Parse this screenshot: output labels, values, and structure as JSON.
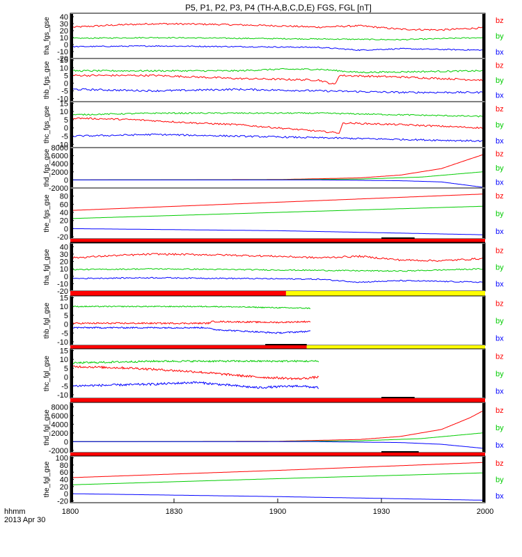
{
  "title": "P5, P1, P2, P3, P4 (TH-A,B,C,D,E) FGS, FGL [nT]",
  "time_label": "hhmm",
  "date_label": "2013 Apr 30",
  "colors": {
    "bx": "#0000ff",
    "by": "#00cc00",
    "bz": "#ff0000",
    "bar_red": "#ff0000",
    "bar_yellow": "#ffff00",
    "bar_black": "#000000"
  },
  "chart_data": {
    "type": "line",
    "x": {
      "range": [
        "1800",
        "2000"
      ],
      "ticks": [
        "1800",
        "1830",
        "1900",
        "1930",
        "2000"
      ]
    },
    "panels": [
      {
        "ylabel": "tha_fgs_gse",
        "ylim": [
          -20,
          45
        ],
        "ticks": [
          "40",
          "30",
          "20",
          "10",
          "0",
          "-10",
          "-20"
        ],
        "series": [
          {
            "name": "bz",
            "keyframes": [
              [
                0,
                25
              ],
              [
                0.1,
                28
              ],
              [
                0.2,
                30
              ],
              [
                0.35,
                29
              ],
              [
                0.5,
                27
              ],
              [
                0.6,
                25
              ],
              [
                0.7,
                27
              ],
              [
                0.8,
                22
              ],
              [
                0.9,
                21
              ],
              [
                1,
                24
              ]
            ],
            "noise": 1.2
          },
          {
            "name": "by",
            "keyframes": [
              [
                0,
                9
              ],
              [
                0.2,
                10
              ],
              [
                0.4,
                9
              ],
              [
                0.6,
                8
              ],
              [
                0.8,
                7
              ],
              [
                1,
                10
              ]
            ],
            "noise": 0.8
          },
          {
            "name": "bx",
            "keyframes": [
              [
                0,
                -3
              ],
              [
                0.2,
                -2
              ],
              [
                0.4,
                -3
              ],
              [
                0.6,
                -4
              ],
              [
                0.7,
                -8
              ],
              [
                0.8,
                -6
              ],
              [
                1,
                -8
              ]
            ],
            "noise": 0.8
          }
        ]
      },
      {
        "ylabel": "thb_fgs_gse",
        "ylim": [
          -12,
          16
        ],
        "ticks": [
          "15",
          "10",
          "5",
          "0",
          "-5",
          "-10"
        ],
        "series": [
          {
            "name": "bz",
            "keyframes": [
              [
                0,
                5
              ],
              [
                0.2,
                5
              ],
              [
                0.4,
                3
              ],
              [
                0.6,
                2
              ],
              [
                0.64,
                -1
              ],
              [
                0.65,
                5
              ],
              [
                0.8,
                4
              ],
              [
                1,
                2
              ]
            ],
            "noise": 0.6
          },
          {
            "name": "by",
            "keyframes": [
              [
                0,
                8
              ],
              [
                0.2,
                8
              ],
              [
                0.4,
                8
              ],
              [
                0.5,
                9
              ],
              [
                0.6,
                9
              ],
              [
                0.7,
                7
              ],
              [
                1,
                8
              ]
            ],
            "noise": 0.5
          },
          {
            "name": "bx",
            "keyframes": [
              [
                0,
                -4
              ],
              [
                0.2,
                -5
              ],
              [
                0.4,
                -4
              ],
              [
                0.6,
                -5
              ],
              [
                0.8,
                -6
              ],
              [
                1,
                -6
              ]
            ],
            "noise": 0.6
          }
        ]
      },
      {
        "ylabel": "thc_fgs_gse",
        "ylim": [
          -12,
          16
        ],
        "ticks": [
          "15",
          "10",
          "5",
          "0",
          "-5",
          "-10"
        ],
        "series": [
          {
            "name": "bz",
            "keyframes": [
              [
                0,
                6
              ],
              [
                0.15,
                5
              ],
              [
                0.3,
                3
              ],
              [
                0.4,
                2
              ],
              [
                0.55,
                -1
              ],
              [
                0.65,
                -3
              ],
              [
                0.66,
                3
              ],
              [
                0.8,
                2
              ],
              [
                1,
                0
              ]
            ],
            "noise": 0.5
          },
          {
            "name": "by",
            "keyframes": [
              [
                0,
                8
              ],
              [
                0.2,
                9
              ],
              [
                0.4,
                9
              ],
              [
                0.6,
                9
              ],
              [
                0.8,
                8
              ],
              [
                1,
                7
              ]
            ],
            "noise": 0.4
          },
          {
            "name": "bx",
            "keyframes": [
              [
                0,
                -5
              ],
              [
                0.2,
                -4
              ],
              [
                0.4,
                -5
              ],
              [
                0.6,
                -6
              ],
              [
                0.8,
                -7
              ],
              [
                1,
                -8
              ]
            ],
            "noise": 0.5
          }
        ]
      },
      {
        "ylabel": "thd_fgs_gse",
        "ylim": [
          -2000,
          8000
        ],
        "ticks": [
          "8000",
          "6000",
          "4000",
          "2000",
          "0",
          "-2000"
        ],
        "series": [
          {
            "name": "bz",
            "keyframes": [
              [
                0,
                0
              ],
              [
                0.5,
                100
              ],
              [
                0.7,
                500
              ],
              [
                0.8,
                1200
              ],
              [
                0.9,
                2800
              ],
              [
                0.97,
                5200
              ],
              [
                1,
                6200
              ]
            ],
            "noise": 0
          },
          {
            "name": "by",
            "keyframes": [
              [
                0,
                0
              ],
              [
                0.5,
                50
              ],
              [
                0.7,
                200
              ],
              [
                0.85,
                700
              ],
              [
                1,
                2000
              ]
            ],
            "noise": 0
          },
          {
            "name": "bx",
            "keyframes": [
              [
                0,
                0
              ],
              [
                0.6,
                0
              ],
              [
                0.8,
                -200
              ],
              [
                0.9,
                -500
              ],
              [
                1,
                -1800
              ]
            ],
            "noise": 0
          }
        ]
      },
      {
        "ylabel": "the_fgs_gse",
        "ylim": [
          -25,
          100
        ],
        "ticks": [
          "80",
          "60",
          "40",
          "20",
          "0",
          "-20"
        ],
        "series": [
          {
            "name": "bz",
            "keyframes": [
              [
                0,
                45
              ],
              [
                0.5,
                65
              ],
              [
                1,
                85
              ]
            ],
            "noise": 0
          },
          {
            "name": "by",
            "keyframes": [
              [
                0,
                25
              ],
              [
                0.5,
                40
              ],
              [
                1,
                55
              ]
            ],
            "noise": 0
          },
          {
            "name": "bx",
            "keyframes": [
              [
                0,
                0
              ],
              [
                0.5,
                -5
              ],
              [
                1,
                -15
              ]
            ],
            "noise": 0
          }
        ]
      },
      {
        "ylabel": "tha_fgl_gse",
        "ylim": [
          -20,
          45
        ],
        "ticks": [
          "40",
          "30",
          "20",
          "10",
          "0",
          "-10",
          "-20"
        ],
        "series": [
          {
            "name": "bz",
            "keyframes": [
              [
                0,
                25
              ],
              [
                0.1,
                28
              ],
              [
                0.2,
                30
              ],
              [
                0.35,
                29
              ],
              [
                0.5,
                27
              ],
              [
                0.6,
                25
              ],
              [
                0.7,
                27
              ],
              [
                0.8,
                22
              ],
              [
                0.9,
                21
              ],
              [
                1,
                24
              ]
            ],
            "noise": 1.2
          },
          {
            "name": "by",
            "keyframes": [
              [
                0,
                9
              ],
              [
                0.2,
                10
              ],
              [
                0.4,
                9
              ],
              [
                0.6,
                8
              ],
              [
                0.8,
                7
              ],
              [
                1,
                10
              ]
            ],
            "noise": 0.8
          },
          {
            "name": "bx",
            "keyframes": [
              [
                0,
                -3
              ],
              [
                0.2,
                -2
              ],
              [
                0.4,
                -3
              ],
              [
                0.6,
                -4
              ],
              [
                0.7,
                -8
              ],
              [
                0.8,
                -6
              ],
              [
                1,
                -8
              ]
            ],
            "noise": 0.8
          }
        ]
      },
      {
        "ylabel": "thb_fgl_gse",
        "ylim": [
          -12,
          16
        ],
        "ticks": [
          "15",
          "10",
          "5",
          "0",
          "-5",
          "-10"
        ],
        "series": [
          {
            "name": "bz",
            "keyframes": [
              [
                0,
                0.5
              ],
              [
                0.33,
                0.5
              ],
              [
                0.34,
                1.5
              ],
              [
                0.5,
                1
              ],
              [
                0.58,
                1.5
              ]
            ],
            "noise": 0.4
          },
          {
            "name": "by",
            "keyframes": [
              [
                0,
                10
              ],
              [
                0.33,
                10
              ],
              [
                0.34,
                10
              ],
              [
                0.58,
                9
              ]
            ],
            "noise": 0.3
          },
          {
            "name": "bx",
            "keyframes": [
              [
                0,
                -2
              ],
              [
                0.33,
                -2
              ],
              [
                0.34,
                -3
              ],
              [
                0.5,
                -5
              ],
              [
                0.58,
                -4
              ]
            ],
            "noise": 0.4
          }
        ]
      },
      {
        "ylabel": "thc_fgl_gse",
        "ylim": [
          -12,
          16
        ],
        "ticks": [
          "15",
          "10",
          "5",
          "0",
          "-5",
          "-10"
        ],
        "series": [
          {
            "name": "bz",
            "keyframes": [
              [
                0,
                6
              ],
              [
                0.15,
                5
              ],
              [
                0.3,
                3
              ],
              [
                0.45,
                0
              ],
              [
                0.55,
                -1
              ],
              [
                0.6,
                0
              ]
            ],
            "noise": 0.6
          },
          {
            "name": "by",
            "keyframes": [
              [
                0,
                8
              ],
              [
                0.2,
                9
              ],
              [
                0.4,
                9
              ],
              [
                0.6,
                9
              ]
            ],
            "noise": 0.5
          },
          {
            "name": "bx",
            "keyframes": [
              [
                0,
                -5
              ],
              [
                0.2,
                -4
              ],
              [
                0.3,
                -3
              ],
              [
                0.45,
                -6
              ],
              [
                0.55,
                -5
              ],
              [
                0.6,
                -6
              ]
            ],
            "noise": 0.6
          }
        ]
      },
      {
        "ylabel": "thd_fgl_gse",
        "ylim": [
          -2500,
          9000
        ],
        "ticks": [
          "8000",
          "6000",
          "4000",
          "2000",
          "0",
          "-2000"
        ],
        "series": [
          {
            "name": "bz",
            "keyframes": [
              [
                0,
                0
              ],
              [
                0.5,
                100
              ],
              [
                0.7,
                500
              ],
              [
                0.8,
                1200
              ],
              [
                0.9,
                2800
              ],
              [
                0.97,
                5500
              ],
              [
                1,
                7000
              ]
            ],
            "noise": 0
          },
          {
            "name": "by",
            "keyframes": [
              [
                0,
                0
              ],
              [
                0.5,
                50
              ],
              [
                0.7,
                200
              ],
              [
                0.85,
                700
              ],
              [
                1,
                2000
              ]
            ],
            "noise": 0
          },
          {
            "name": "bx",
            "keyframes": [
              [
                0,
                0
              ],
              [
                0.6,
                0
              ],
              [
                0.8,
                -200
              ],
              [
                0.9,
                -600
              ],
              [
                1,
                -1500
              ]
            ],
            "noise": 0
          }
        ]
      },
      {
        "ylabel": "the_fgl_gse",
        "ylim": [
          -25,
          105
        ],
        "ticks": [
          "100",
          "80",
          "60",
          "40",
          "20",
          "0",
          "-20"
        ],
        "series": [
          {
            "name": "bz",
            "keyframes": [
              [
                0,
                45
              ],
              [
                0.5,
                65
              ],
              [
                1,
                87
              ]
            ],
            "noise": 0
          },
          {
            "name": "by",
            "keyframes": [
              [
                0,
                25
              ],
              [
                0.5,
                42
              ],
              [
                1,
                58
              ]
            ],
            "noise": 0
          },
          {
            "name": "bx",
            "keyframes": [
              [
                0,
                0
              ],
              [
                0.5,
                -8
              ],
              [
                1,
                -18
              ]
            ],
            "noise": 0
          }
        ]
      }
    ],
    "legend": [
      "bz",
      "by",
      "bx"
    ]
  }
}
